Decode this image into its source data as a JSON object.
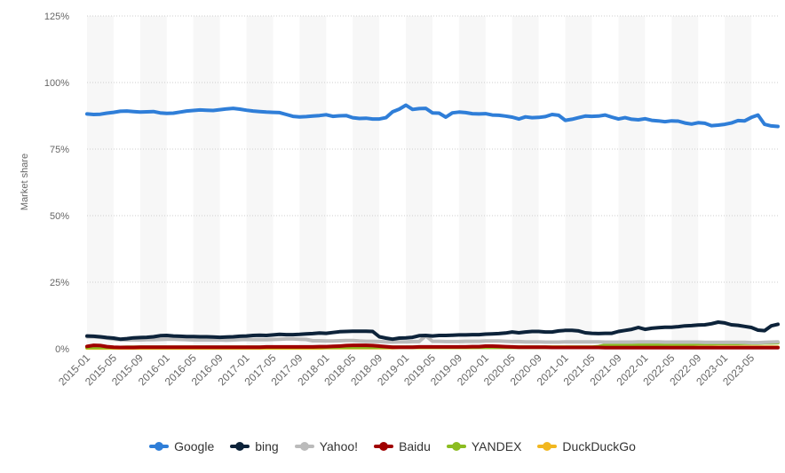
{
  "chart_data": {
    "type": "line",
    "title": "",
    "xlabel": "",
    "ylabel": "Market share",
    "ylim": [
      0,
      125
    ],
    "yticks": [
      "0%",
      "25%",
      "50%",
      "75%",
      "100%",
      "125%"
    ],
    "ytick_values": [
      0,
      25,
      50,
      75,
      100,
      125
    ],
    "grid": true,
    "legend_placement": "bottom",
    "x_start": "2015-01",
    "x_end": "2023-09",
    "xtick_labels": [
      "2015-01",
      "2015-05",
      "2015-09",
      "2016-01",
      "2016-05",
      "2016-09",
      "2017-01",
      "2017-05",
      "2017-09",
      "2018-01",
      "2018-05",
      "2018-09",
      "2019-01",
      "2019-05",
      "2019-09",
      "2020-01",
      "2020-05",
      "2020-09",
      "2021-01",
      "2021-05",
      "2021-09",
      "2022-01",
      "2022-05",
      "2022-09",
      "2023-01",
      "2023-05"
    ],
    "series": [
      {
        "name": "Google",
        "color": "#2f7ed8",
        "values": [
          88.2,
          88.0,
          88.1,
          88.5,
          88.8,
          89.2,
          89.3,
          89.1,
          88.9,
          89.0,
          89.1,
          88.6,
          88.4,
          88.5,
          88.9,
          89.3,
          89.5,
          89.7,
          89.6,
          89.5,
          89.8,
          90.1,
          90.3,
          90.0,
          89.6,
          89.3,
          89.1,
          88.9,
          88.8,
          88.7,
          88.0,
          87.3,
          87.1,
          87.2,
          87.4,
          87.6,
          87.9,
          87.3,
          87.5,
          87.6,
          86.8,
          86.5,
          86.6,
          86.3,
          86.3,
          86.8,
          89.0,
          90.0,
          91.5,
          89.9,
          90.2,
          90.3,
          88.6,
          88.5,
          87.0,
          88.6,
          88.9,
          88.7,
          88.3,
          88.2,
          88.3,
          87.8,
          87.7,
          87.4,
          87.0,
          86.3,
          87.1,
          86.8,
          86.9,
          87.2,
          88.0,
          87.7,
          85.8,
          86.2,
          86.8,
          87.4,
          87.3,
          87.4,
          87.8,
          87.0,
          86.3,
          86.8,
          86.2,
          86.0,
          86.4,
          85.8,
          85.6,
          85.3,
          85.6,
          85.5,
          84.8,
          84.4,
          84.9,
          84.7,
          83.8,
          84.0,
          84.3,
          84.8,
          85.7,
          85.6,
          86.9,
          87.8,
          84.3,
          83.7,
          83.5
        ]
      },
      {
        "name": "bing",
        "color": "#0d233a",
        "values": [
          4.8,
          4.7,
          4.5,
          4.2,
          4.0,
          3.6,
          3.8,
          4.1,
          4.2,
          4.3,
          4.5,
          4.9,
          5.0,
          4.8,
          4.7,
          4.6,
          4.6,
          4.5,
          4.5,
          4.4,
          4.3,
          4.4,
          4.5,
          4.7,
          4.8,
          5.0,
          5.1,
          5.0,
          5.2,
          5.4,
          5.3,
          5.3,
          5.4,
          5.6,
          5.7,
          5.9,
          5.8,
          6.1,
          6.4,
          6.5,
          6.6,
          6.6,
          6.6,
          6.5,
          4.5,
          4.0,
          3.6,
          4.0,
          4.1,
          4.3,
          4.9,
          5.0,
          4.8,
          5.0,
          5.0,
          5.1,
          5.2,
          5.2,
          5.3,
          5.3,
          5.5,
          5.6,
          5.7,
          5.9,
          6.3,
          6.0,
          6.3,
          6.5,
          6.5,
          6.3,
          6.3,
          6.7,
          6.9,
          6.9,
          6.7,
          6.0,
          5.8,
          5.7,
          5.8,
          5.8,
          6.5,
          6.9,
          7.3,
          8.0,
          7.3,
          7.7,
          7.9,
          8.1,
          8.1,
          8.3,
          8.6,
          8.7,
          8.9,
          9.0,
          9.4,
          10.0,
          9.7,
          9.0,
          8.8,
          8.4,
          8.0,
          7.0,
          6.8,
          8.6,
          9.2
        ]
      },
      {
        "name": "Yahoo!",
        "color": "#bbbbbb",
        "values": [
          4.5,
          4.5,
          4.3,
          4.0,
          3.6,
          3.4,
          3.3,
          3.3,
          3.3,
          3.4,
          3.4,
          3.5,
          3.6,
          3.6,
          3.5,
          3.4,
          3.3,
          3.3,
          3.3,
          3.3,
          3.3,
          3.2,
          3.3,
          3.4,
          3.5,
          3.4,
          3.4,
          3.4,
          3.5,
          3.6,
          3.7,
          3.7,
          3.6,
          3.5,
          3.0,
          3.0,
          2.9,
          2.9,
          3.0,
          3.1,
          3.1,
          2.9,
          2.8,
          2.8,
          2.7,
          2.6,
          2.5,
          2.6,
          2.6,
          2.7,
          2.7,
          4.9,
          2.8,
          2.8,
          2.7,
          2.7,
          2.7,
          2.8,
          2.8,
          2.8,
          2.9,
          2.9,
          2.9,
          2.8,
          2.7,
          2.7,
          2.6,
          2.6,
          2.6,
          2.5,
          2.5,
          2.5,
          2.6,
          2.6,
          2.6,
          2.6,
          2.6,
          2.6,
          2.5,
          2.5,
          2.5,
          2.5,
          2.5,
          2.6,
          2.6,
          2.6,
          2.6,
          2.5,
          2.5,
          2.5,
          2.5,
          2.5,
          2.5,
          2.4,
          2.4,
          2.4,
          2.4,
          2.4,
          2.4,
          2.4,
          2.3,
          2.3,
          2.4,
          2.5,
          2.6
        ]
      },
      {
        "name": "Baidu",
        "color": "#a00000",
        "values": [
          0.9,
          1.3,
          1.2,
          0.8,
          0.6,
          0.5,
          0.5,
          0.5,
          0.6,
          0.6,
          0.6,
          0.6,
          0.6,
          0.6,
          0.6,
          0.6,
          0.6,
          0.6,
          0.6,
          0.6,
          0.6,
          0.6,
          0.6,
          0.6,
          0.6,
          0.6,
          0.6,
          0.7,
          0.7,
          0.7,
          0.7,
          0.7,
          0.7,
          0.7,
          0.7,
          0.8,
          0.8,
          0.9,
          1.0,
          1.2,
          1.3,
          1.3,
          1.3,
          1.2,
          1.0,
          0.8,
          0.6,
          0.6,
          0.6,
          0.6,
          0.7,
          0.7,
          0.7,
          0.7,
          0.7,
          0.7,
          0.7,
          0.7,
          0.8,
          0.8,
          1.0,
          1.0,
          0.9,
          0.8,
          0.7,
          0.6,
          0.6,
          0.6,
          0.6,
          0.6,
          0.5,
          0.5,
          0.5,
          0.5,
          0.5,
          0.5,
          0.5,
          0.5,
          0.4,
          0.4,
          0.4,
          0.4,
          0.4,
          0.4,
          0.4,
          0.4,
          0.4,
          0.4,
          0.4,
          0.4,
          0.4,
          0.4,
          0.4,
          0.4,
          0.4,
          0.4,
          0.4,
          0.4,
          0.4,
          0.4,
          0.4,
          0.4,
          0.4,
          0.4,
          0.4
        ]
      },
      {
        "name": "YANDEX",
        "color": "#8bbc21",
        "values": [
          0.5,
          0.5,
          0.5,
          0.5,
          0.5,
          0.5,
          0.6,
          0.6,
          0.6,
          0.6,
          0.6,
          0.6,
          0.6,
          0.6,
          0.6,
          0.6,
          0.6,
          0.6,
          0.6,
          0.6,
          0.6,
          0.6,
          0.6,
          0.6,
          0.6,
          0.6,
          0.6,
          0.6,
          0.6,
          0.6,
          0.6,
          0.6,
          0.6,
          0.6,
          0.6,
          0.6,
          0.6,
          0.6,
          0.6,
          0.6,
          0.6,
          0.6,
          0.6,
          0.6,
          0.6,
          0.6,
          0.6,
          0.6,
          0.6,
          0.6,
          0.6,
          0.6,
          0.6,
          0.6,
          0.6,
          0.6,
          0.6,
          0.6,
          0.6,
          0.6,
          0.6,
          0.6,
          0.6,
          0.6,
          0.6,
          0.6,
          0.6,
          0.6,
          0.6,
          0.6,
          0.6,
          0.6,
          0.6,
          0.6,
          0.6,
          0.6,
          0.6,
          0.8,
          1.3,
          1.5,
          1.5,
          1.5,
          1.6,
          1.6,
          1.6,
          1.7,
          1.7,
          1.7,
          1.8,
          1.8,
          1.8,
          1.8,
          1.9,
          1.9,
          1.9,
          2.0,
          2.0,
          2.0,
          2.0,
          2.1,
          2.1,
          2.1,
          2.2,
          2.2,
          2.3
        ]
      },
      {
        "name": "DuckDuckGo",
        "color": "#f1b720",
        "values": [
          0.3,
          0.3,
          0.3,
          0.3,
          0.3,
          0.3,
          0.3,
          0.3,
          0.3,
          0.3,
          0.3,
          0.3,
          0.3,
          0.3,
          0.3,
          0.3,
          0.3,
          0.3,
          0.3,
          0.3,
          0.3,
          0.3,
          0.3,
          0.3,
          0.3,
          0.3,
          0.3,
          0.3,
          0.3,
          0.3,
          0.3,
          0.3,
          0.3,
          0.3,
          0.3,
          0.3,
          0.4,
          0.4,
          0.4,
          0.4,
          0.4,
          0.4,
          0.4,
          0.4,
          0.4,
          0.4,
          0.4,
          0.5,
          0.5,
          0.5,
          0.5,
          0.5,
          0.5,
          0.5,
          0.5,
          0.5,
          0.5,
          0.5,
          0.5,
          0.6,
          0.6,
          0.6,
          0.6,
          0.6,
          0.6,
          0.6,
          0.6,
          0.6,
          0.6,
          0.6,
          0.6,
          0.6,
          0.6,
          0.6,
          0.6,
          0.6,
          0.6,
          0.6,
          0.6,
          0.6,
          0.6,
          0.6,
          0.6,
          0.6,
          0.6,
          0.6,
          0.6,
          0.6,
          0.6,
          0.6,
          0.6,
          0.6,
          0.6,
          0.6,
          0.6,
          0.6,
          0.6,
          0.6,
          0.6,
          0.6,
          0.6,
          0.6,
          0.6,
          0.6,
          0.6
        ]
      }
    ]
  }
}
